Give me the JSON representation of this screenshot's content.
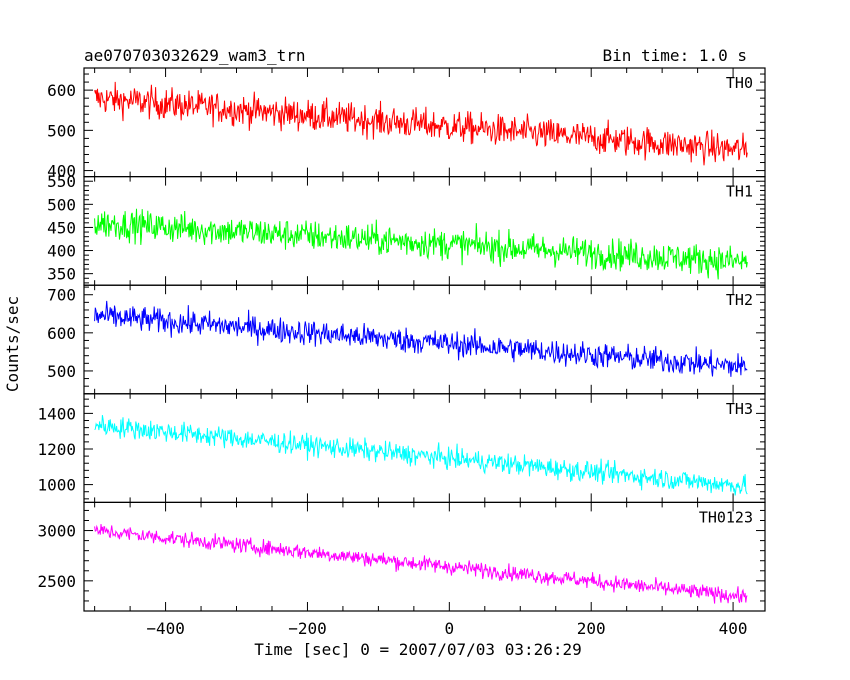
{
  "header": {
    "title": "ae070703032629_wam3_trn",
    "bin_time": "Bin time: 1.0 s"
  },
  "chart_data": {
    "type": "line",
    "xlabel": "Time [sec] 0 = 2007/07/03 03:26:29",
    "ylabel": "Counts/sec",
    "xlim": [
      -515,
      445
    ],
    "x_ticks": [
      -400,
      -200,
      0,
      200,
      400
    ],
    "x_range": [
      -500,
      420
    ],
    "panels": [
      {
        "name": "TH0",
        "color": "#ff0000",
        "ylim": [
          385,
          655
        ],
        "y_ticks": [
          400,
          500,
          600
        ],
        "start": 580,
        "end": 450,
        "noise": 28
      },
      {
        "name": "TH1",
        "color": "#00ff00",
        "ylim": [
          325,
          560
        ],
        "y_ticks": [
          350,
          400,
          450,
          500,
          550
        ],
        "start": 460,
        "end": 375,
        "noise": 24
      },
      {
        "name": "TH2",
        "color": "#0000ff",
        "ylim": [
          440,
          725
        ],
        "y_ticks": [
          500,
          600,
          700
        ],
        "start": 645,
        "end": 510,
        "noise": 24
      },
      {
        "name": "TH3",
        "color": "#00ffff",
        "ylim": [
          900,
          1510
        ],
        "y_ticks": [
          1000,
          1200,
          1400
        ],
        "start": 1335,
        "end": 990,
        "noise": 42
      },
      {
        "name": "TH0123",
        "color": "#ff00ff",
        "ylim": [
          2200,
          3280
        ],
        "y_ticks": [
          2500,
          3000
        ],
        "start": 3000,
        "end": 2340,
        "noise": 55
      }
    ]
  }
}
